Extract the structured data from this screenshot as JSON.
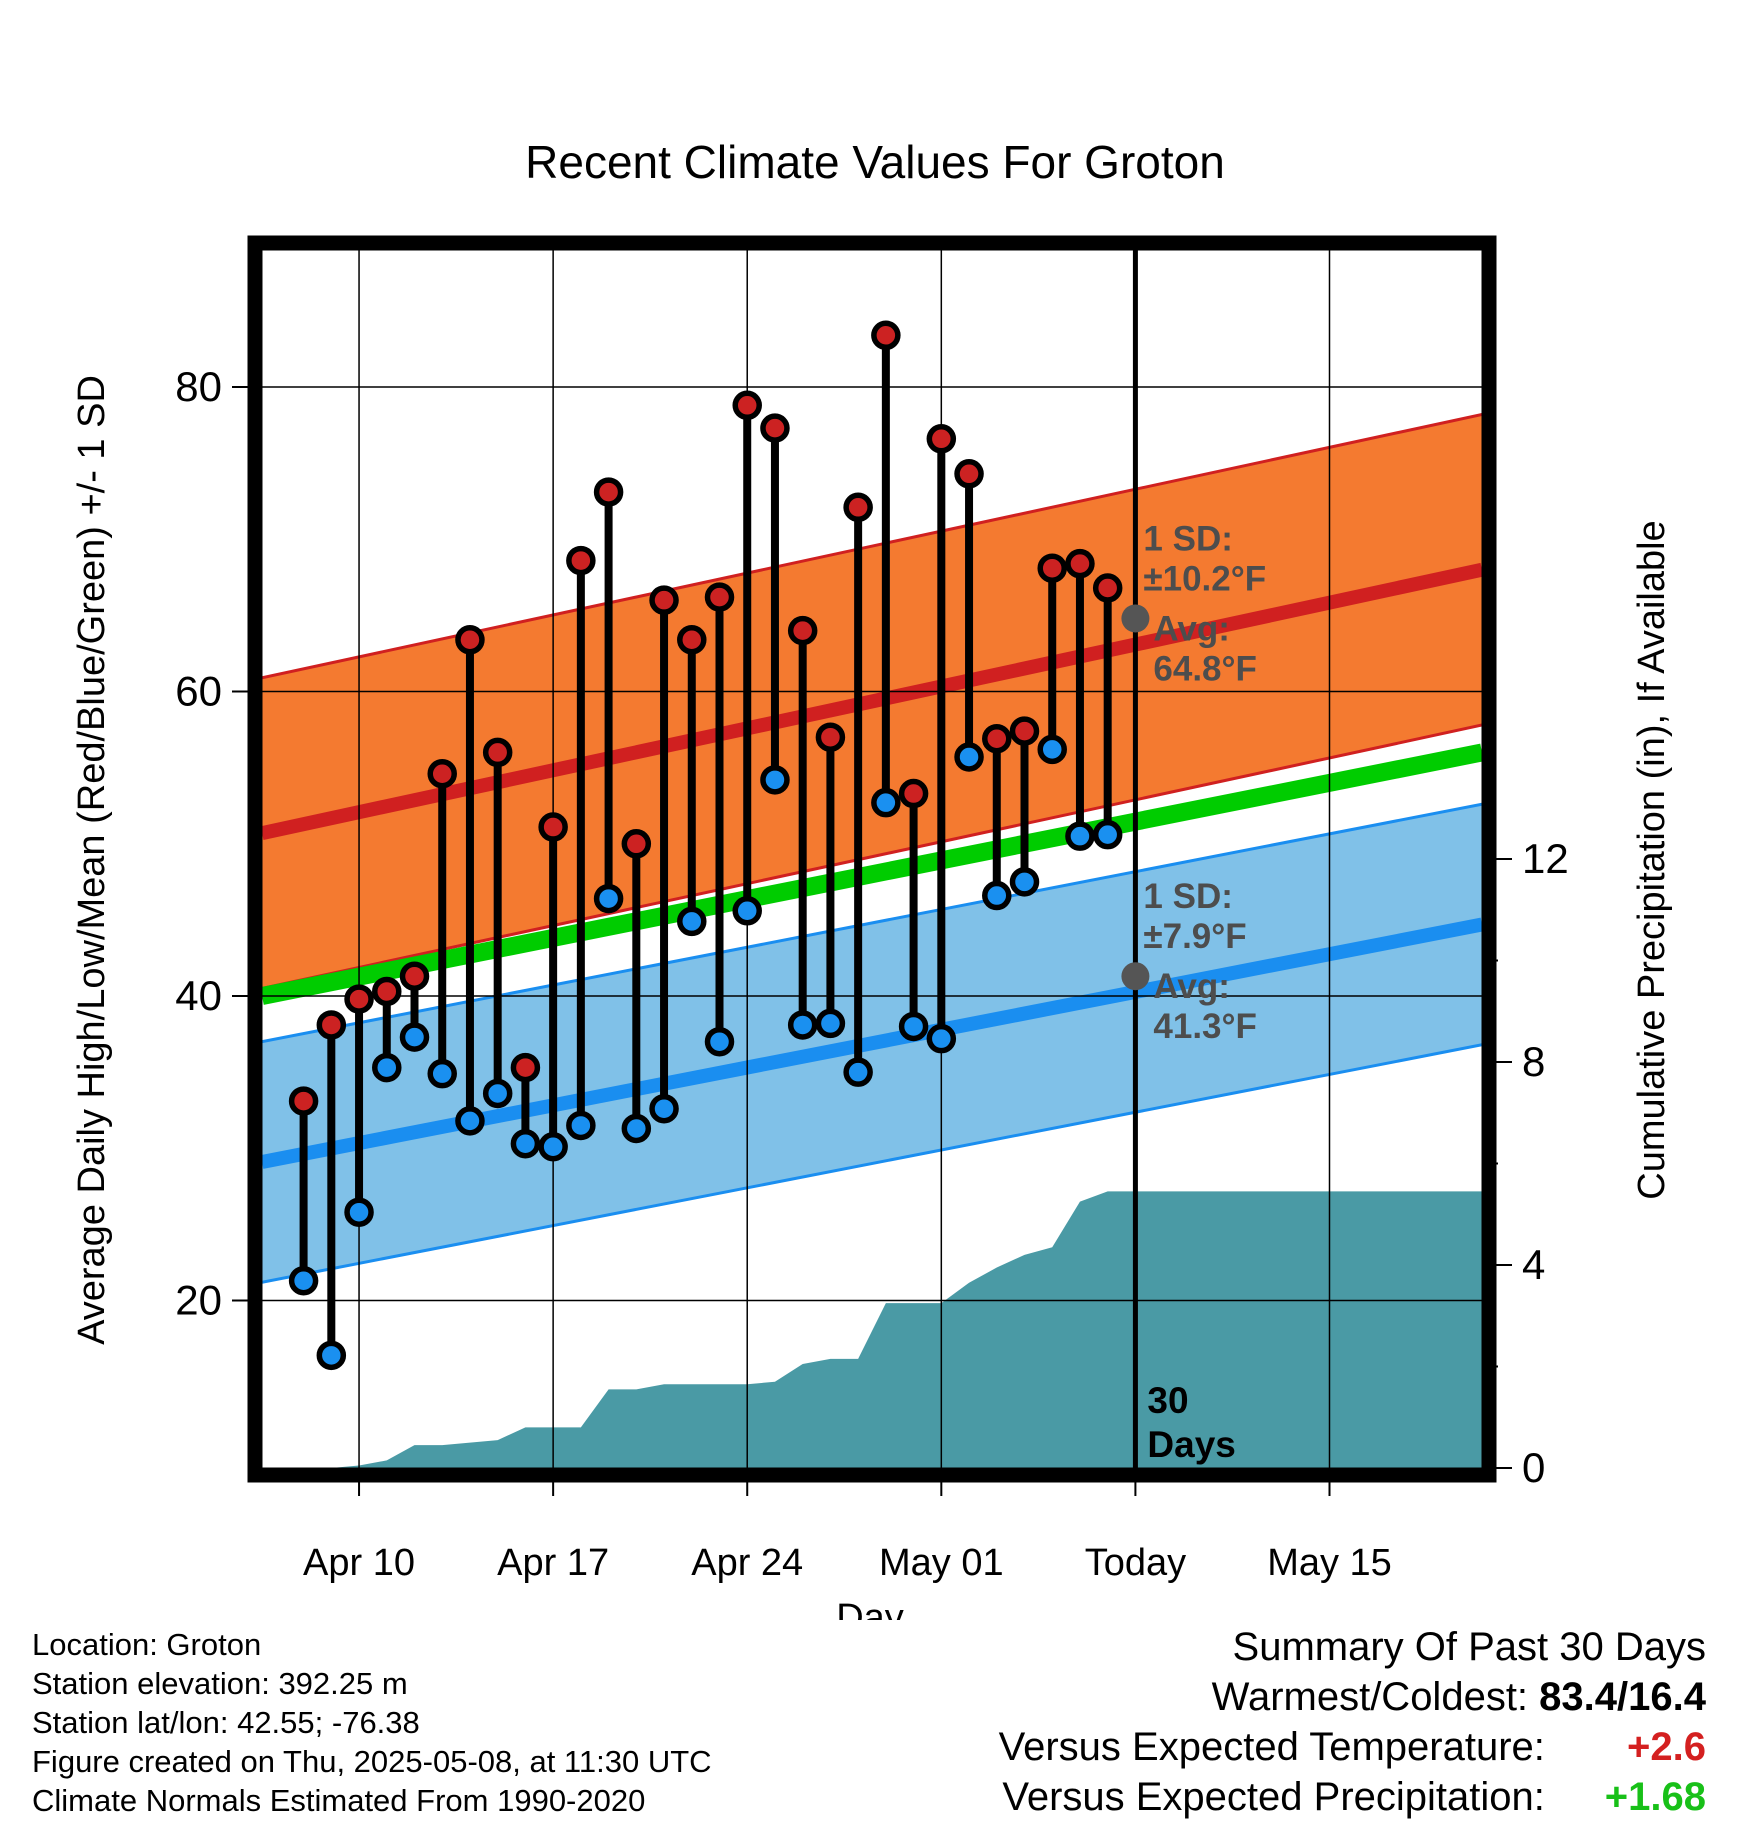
{
  "chart_data": {
    "type": "line",
    "title": "Recent Climate Values For Groton",
    "xlabel": "Day",
    "ylabel": "Average Daily High/Low/Mean (Red/Blue/Green) +/- 1 SD",
    "y2label": "Cumulative Precipitation (in), If Available",
    "ylim": [
      9,
      89
    ],
    "y2lim": [
      0,
      24
    ],
    "xlim_day_offset": [
      -3.5,
      40.5
    ],
    "x_ticks": [
      {
        "offset": 0,
        "label": "Apr 10"
      },
      {
        "offset": 7,
        "label": "Apr 17"
      },
      {
        "offset": 14,
        "label": "Apr 24"
      },
      {
        "offset": 21,
        "label": "May 01"
      },
      {
        "offset": 28,
        "label": "Today"
      },
      {
        "offset": 35,
        "label": "May 15"
      }
    ],
    "y_ticks": [
      20,
      40,
      60,
      80
    ],
    "y2_ticks": [
      0,
      4,
      8,
      12
    ],
    "today_offset": 28,
    "today_label": "30 Days",
    "normal_high": {
      "start": 50.7,
      "end": 68.0,
      "sd": 10.2,
      "avg_today": 64.8
    },
    "normal_low": {
      "start": 29.1,
      "end": 44.7,
      "sd": 7.9,
      "avg_today": 41.3
    },
    "normal_mean": {
      "start": 40.0,
      "end": 56.0
    },
    "sd_labels": {
      "high": [
        "1 SD:",
        "±10.2°F",
        "Avg:",
        "64.8°F"
      ],
      "low": [
        "1 SD:",
        "±7.9°F",
        "Avg:",
        "41.3°F"
      ]
    },
    "daily": {
      "day_offset": [
        -2,
        -1,
        0,
        1,
        2,
        3,
        4,
        5,
        6,
        7,
        8,
        9,
        10,
        11,
        12,
        13,
        14,
        15,
        16,
        17,
        18,
        19,
        20,
        21,
        22,
        23,
        24,
        25,
        26,
        27
      ],
      "highs": [
        33.1,
        38.1,
        39.8,
        40.3,
        41.3,
        54.6,
        63.4,
        56.0,
        35.3,
        51.1,
        68.6,
        73.1,
        50.0,
        66.0,
        63.4,
        66.2,
        78.8,
        77.3,
        64.0,
        57.0,
        72.1,
        83.4,
        53.3,
        76.6,
        74.3,
        56.9,
        57.4,
        68.1,
        68.4,
        66.8
      ],
      "lows": [
        21.3,
        16.4,
        25.8,
        35.3,
        37.3,
        34.9,
        31.8,
        33.6,
        30.3,
        30.1,
        31.5,
        46.4,
        31.3,
        32.6,
        44.9,
        37.0,
        45.6,
        54.2,
        38.1,
        38.2,
        35.0,
        52.7,
        38.0,
        37.2,
        55.7,
        46.6,
        47.5,
        56.2,
        50.5,
        50.6
      ]
    },
    "precip_cumulative": {
      "day_offset": [
        -2,
        -1,
        0,
        1,
        2,
        3,
        4,
        5,
        6,
        7,
        8,
        9,
        10,
        11,
        12,
        13,
        14,
        15,
        16,
        17,
        18,
        19,
        20,
        21,
        22,
        23,
        24,
        25,
        26,
        27,
        28,
        40.5
      ],
      "values": [
        0,
        0,
        0.05,
        0.15,
        0.45,
        0.45,
        0.5,
        0.55,
        0.8,
        0.8,
        0.8,
        1.55,
        1.55,
        1.65,
        1.65,
        1.65,
        1.65,
        1.7,
        2.05,
        2.15,
        2.15,
        3.25,
        3.25,
        3.25,
        3.65,
        3.95,
        4.2,
        4.35,
        5.25,
        5.45,
        5.45,
        5.45
      ]
    },
    "colors": {
      "high_band": "#f47a30",
      "high_line": "#d02020",
      "mean_line": "#00cc00",
      "low_band": "#80c1e8",
      "low_line": "#1a8ef0",
      "precip": "#4a9aa5",
      "high_dot": "#cc2222",
      "low_dot": "#1a90f0",
      "avg_marker": "#555555",
      "sd_text": "#4d4d4d"
    }
  },
  "meta": {
    "location": "Location: Groton",
    "elevation": "Station elevation: 392.25 m",
    "latlon": "Station lat/lon: 42.55; -76.38",
    "created": "Figure created on Thu, 2025-05-08, at 11:30 UTC",
    "normals": "Climate Normals Estimated From 1990-2020"
  },
  "summary": {
    "heading": "Summary Of Past 30 Days",
    "warmest_label": "Warmest/Coldest:",
    "warmest_value": "83.4/16.4",
    "temp_label": "Versus Expected Temperature:",
    "temp_value": "+2.6",
    "temp_color": "#d42020",
    "precip_label": "Versus Expected Precipitation:",
    "precip_value": "+1.68",
    "precip_color": "#18c018"
  }
}
